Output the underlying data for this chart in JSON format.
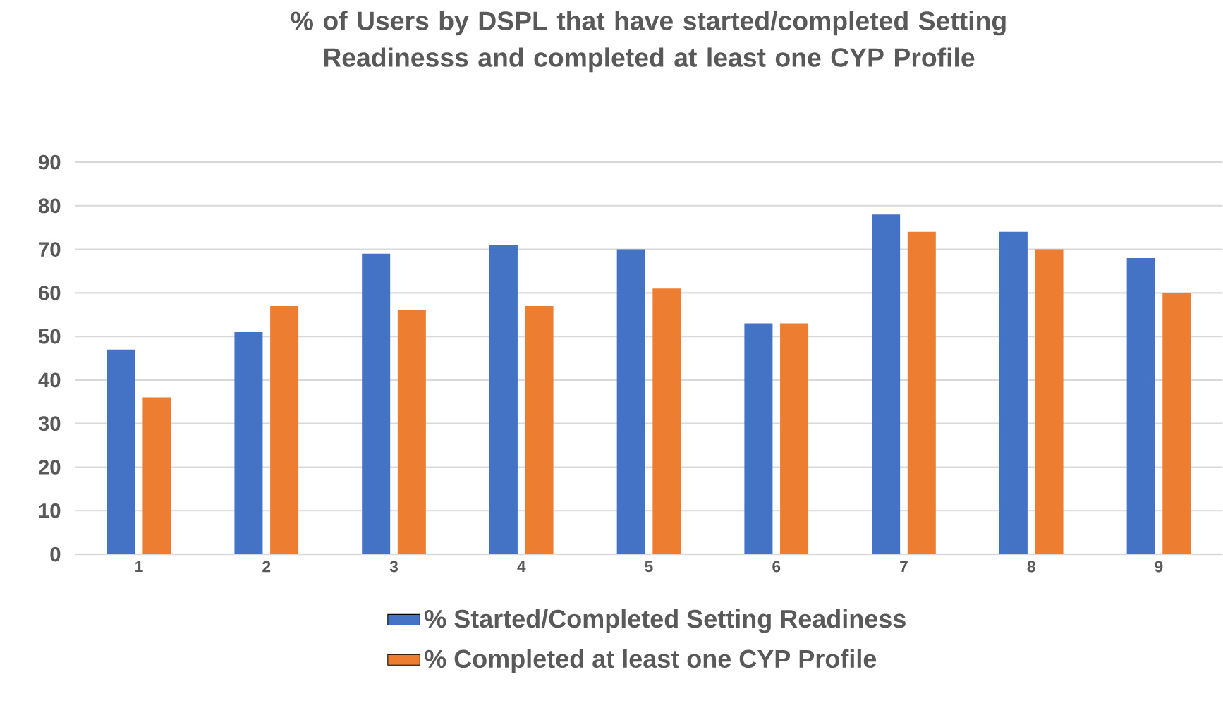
{
  "chart_data": {
    "type": "bar",
    "title": "% of Users by DSPL that have started/completed Setting Readinesss and completed at least one CYP Profile",
    "categories": [
      "1",
      "2",
      "3",
      "4",
      "5",
      "6",
      "7",
      "8",
      "9"
    ],
    "series": [
      {
        "name": "% Started/Completed Setting Readiness",
        "color": "#4472c4",
        "values": [
          47,
          51,
          69,
          71,
          70,
          53,
          78,
          74,
          68
        ]
      },
      {
        "name": "% Completed at least one CYP Profile",
        "color": "#ed7d31",
        "values": [
          36,
          57,
          56,
          57,
          61,
          53,
          74,
          70,
          60
        ]
      }
    ],
    "ylim": [
      0,
      90
    ],
    "yticks": [
      0,
      10,
      20,
      30,
      40,
      50,
      60,
      70,
      80,
      90
    ],
    "grid": "y",
    "legend": "bottom"
  }
}
